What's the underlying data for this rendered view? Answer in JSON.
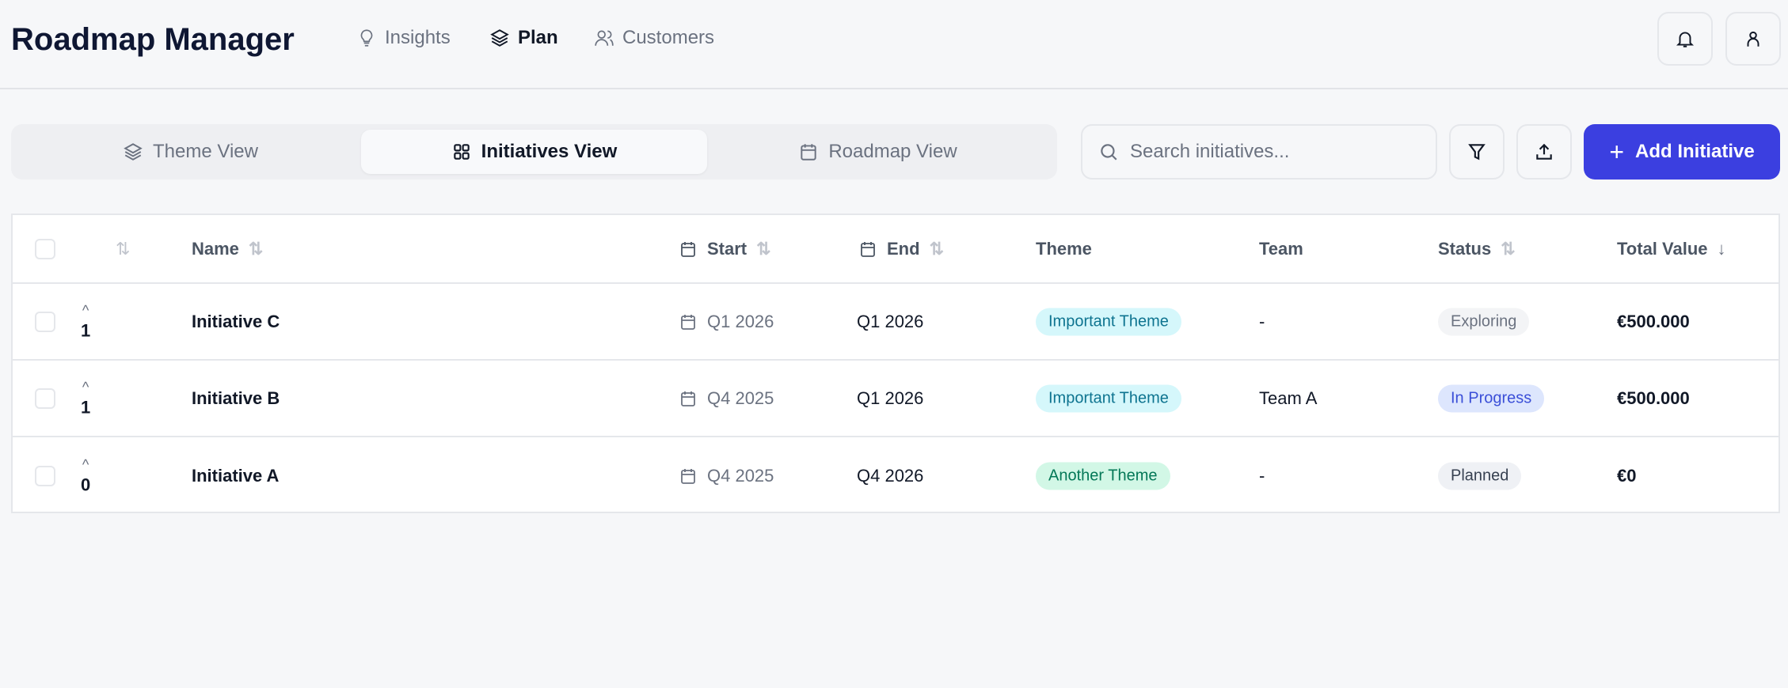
{
  "app": {
    "title": "Roadmap Manager"
  },
  "nav": [
    {
      "label": "Insights",
      "icon": "lightbulb-icon"
    },
    {
      "label": "Plan",
      "icon": "layers-icon",
      "active": true
    },
    {
      "label": "Customers",
      "icon": "users-icon"
    }
  ],
  "views": [
    {
      "label": "Theme View",
      "icon": "layers-icon"
    },
    {
      "label": "Initiatives View",
      "icon": "grid-icon",
      "active": true
    },
    {
      "label": "Roadmap View",
      "icon": "calendar-icon"
    }
  ],
  "search": {
    "placeholder": "Search initiatives...",
    "value": ""
  },
  "toolbar": {
    "add_label": "Add Initiative",
    "accent": "#3b3fe0"
  },
  "table": {
    "headers": {
      "name": "Name",
      "start": "Start",
      "end": "End",
      "theme": "Theme",
      "team": "Team",
      "status": "Status",
      "total": "Total Value"
    },
    "rows": [
      {
        "votes": "1",
        "name": "Initiative C",
        "start": "Q1 2026",
        "end": "Q1 2026",
        "theme": "Important Theme",
        "team": "-",
        "status": "Exploring",
        "total": "€500.000"
      },
      {
        "votes": "1",
        "name": "Initiative B",
        "start": "Q4 2025",
        "end": "Q1 2026",
        "theme": "Important Theme",
        "team": "Team A",
        "status": "In Progress",
        "total": "€500.000"
      },
      {
        "votes": "0",
        "name": "Initiative A",
        "start": "Q4 2025",
        "end": "Q4 2026",
        "theme": "Another Theme",
        "team": "-",
        "status": "Planned",
        "total": "€0"
      }
    ]
  },
  "colors": {
    "important_theme_bg": "#d5f7fb",
    "important_theme_fg": "#0e7490",
    "another_theme_bg": "#d2f7e6",
    "another_theme_fg": "#047857",
    "exploring_bg": "#f3f4f6",
    "in_progress_bg": "#dde6fd",
    "in_progress_fg": "#3b4fd8",
    "planned_bg": "#eff1f5"
  }
}
